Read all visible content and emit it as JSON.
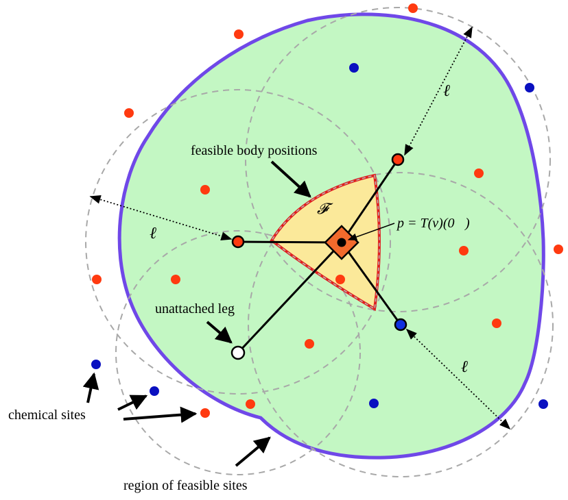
{
  "labels": {
    "feasible_body_positions": "feasible body positions",
    "script_f": "𝓕",
    "body_formula": "p = T(v)(0⃗)",
    "unattached_leg": "unattached leg",
    "chemical_sites": "chemical sites",
    "region_of_feasible_sites": "region of feasible sites",
    "ell_left": "ℓ",
    "ell_top": "ℓ",
    "ell_bottom": "ℓ"
  },
  "colors": {
    "region_fill": "#c3f7c3",
    "region_outline": "#6f48e8",
    "feasible_fill": "#fbe99a",
    "feasible_outline": "#e02020",
    "red_site": "#ff3a10",
    "blue_site": "#0a10c0",
    "body": "#f26a2c",
    "dashed_circle": "#a8a8a8"
  },
  "icons": {
    "body": "orange-diamond-body-icon",
    "body_center": "black-dot-icon",
    "unattached_foot": "hollow-circle-icon"
  }
}
